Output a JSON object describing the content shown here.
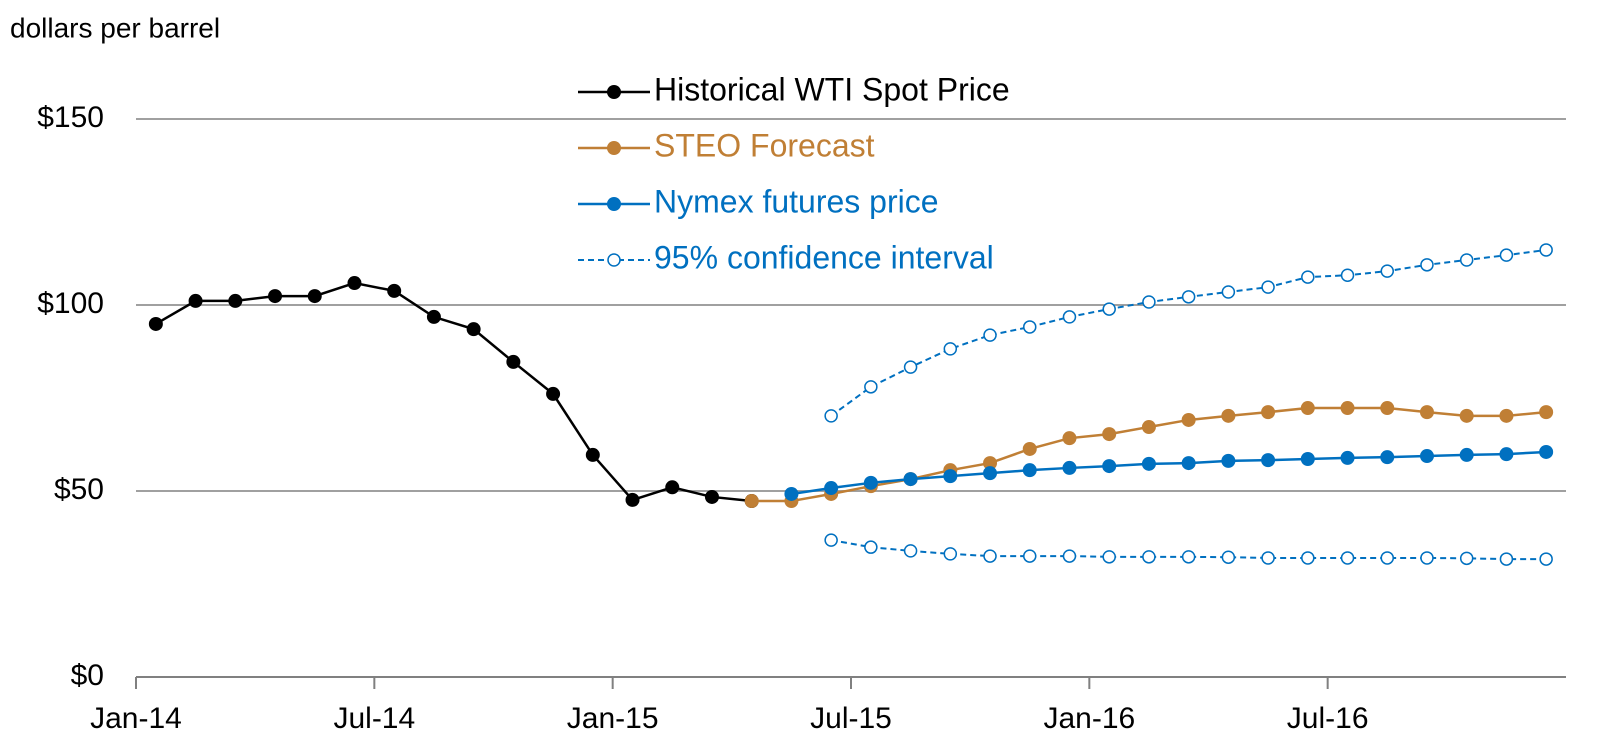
{
  "chart_data": {
    "type": "line",
    "y_label": "dollars per barrel",
    "categories": [
      "Jan-14",
      null,
      null,
      null,
      null,
      null,
      "Jul-14",
      null,
      null,
      null,
      null,
      null,
      "Jan-15",
      null,
      null,
      null,
      null,
      null,
      "Jul-15",
      null,
      null,
      null,
      null,
      null,
      "Jan-16",
      null,
      null,
      null,
      null,
      null,
      "Jul-16",
      null,
      null,
      null,
      null,
      null
    ],
    "ylim": [
      0,
      150
    ],
    "yticks": [
      {
        "value": 0,
        "label": "$0"
      },
      {
        "value": 50,
        "label": "$50"
      },
      {
        "value": 100,
        "label": "$100"
      },
      {
        "value": 150,
        "label": "$150"
      }
    ],
    "grid": true,
    "legend": "top",
    "series": [
      {
        "name": "Historical WTI Spot Price",
        "color": "#000000",
        "dash": false,
        "marker": "filled",
        "values": [
          94.9,
          101.1,
          101.1,
          102.4,
          102.4,
          105.9,
          103.8,
          96.8,
          93.5,
          84.7,
          76.1,
          59.7,
          47.6,
          51.0,
          48.4,
          47.3,
          null,
          null,
          null,
          null,
          null,
          null,
          null,
          null,
          null,
          null,
          null,
          null,
          null,
          null,
          null,
          null,
          null,
          null,
          null,
          null
        ]
      },
      {
        "name": "STEO Forecast",
        "color": "#c07f35",
        "dash": false,
        "marker": "filled",
        "values": [
          null,
          null,
          null,
          null,
          null,
          null,
          null,
          null,
          null,
          null,
          null,
          null,
          null,
          null,
          null,
          47.3,
          47.3,
          49.2,
          51.3,
          53.2,
          55.6,
          57.5,
          61.3,
          64.2,
          65.3,
          67.2,
          69.1,
          70.2,
          71.2,
          72.3,
          72.3,
          72.3,
          71.2,
          70.2,
          70.2,
          71.2
        ]
      },
      {
        "name": "Nymex futures price",
        "color": "#0070c0",
        "dash": false,
        "marker": "filled",
        "values": [
          null,
          null,
          null,
          null,
          null,
          null,
          null,
          null,
          null,
          null,
          null,
          null,
          null,
          null,
          null,
          null,
          49.2,
          50.8,
          52.2,
          53.2,
          54.0,
          54.8,
          55.6,
          56.2,
          56.7,
          57.3,
          57.5,
          58.1,
          58.3,
          58.6,
          58.9,
          59.1,
          59.4,
          59.7,
          59.9,
          60.5
        ]
      },
      {
        "name": "95% confidence interval",
        "color": "#0070c0",
        "dash": true,
        "marker": "open",
        "values": [
          null,
          null,
          null,
          null,
          null,
          null,
          null,
          null,
          null,
          null,
          null,
          null,
          null,
          null,
          null,
          null,
          null,
          70.2,
          78.0,
          83.3,
          88.2,
          91.9,
          94.1,
          96.8,
          98.9,
          100.8,
          102.2,
          103.5,
          104.8,
          107.5,
          108.0,
          109.1,
          110.8,
          112.1,
          113.4,
          114.8
        ]
      },
      {
        "color": "#0070c0",
        "dash": true,
        "marker": "open",
        "values": [
          null,
          null,
          null,
          null,
          null,
          null,
          null,
          null,
          null,
          null,
          null,
          null,
          null,
          null,
          null,
          null,
          null,
          36.8,
          34.9,
          33.9,
          33.1,
          32.5,
          32.5,
          32.5,
          32.3,
          32.3,
          32.3,
          32.2,
          32.0,
          32.0,
          32.0,
          32.0,
          32.0,
          31.9,
          31.7,
          31.7
        ]
      }
    ]
  }
}
